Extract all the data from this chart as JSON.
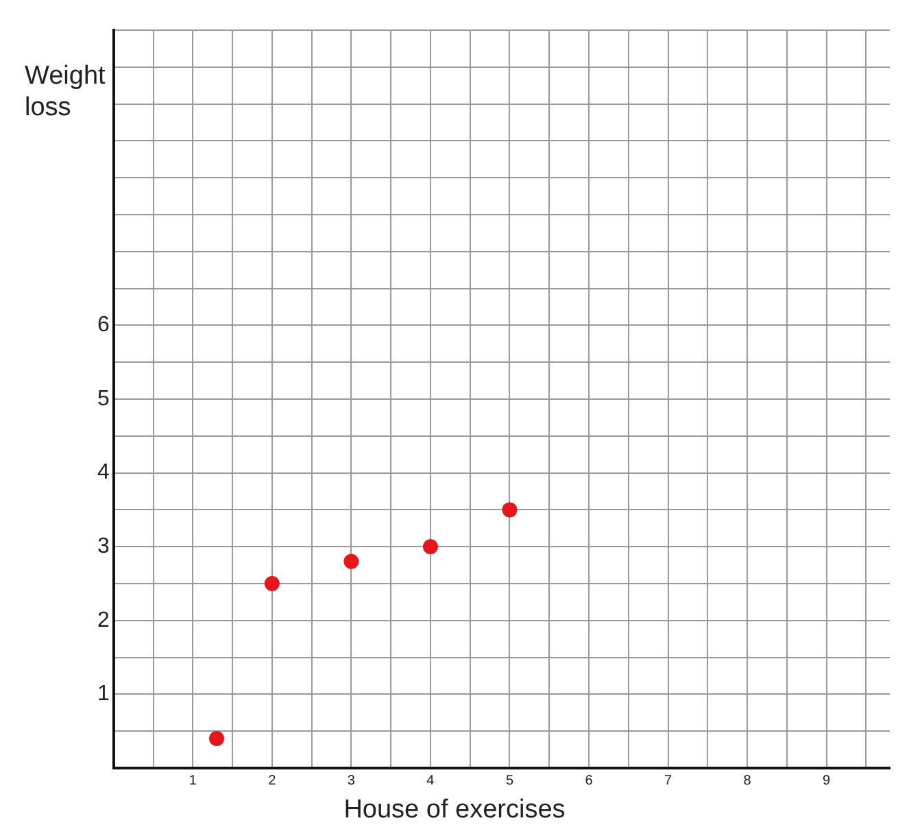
{
  "chart_data": {
    "type": "scatter",
    "xlabel": "House of exercises",
    "ylabel": "Weight loss",
    "x": [
      1.3,
      2,
      3,
      4,
      5
    ],
    "values": [
      0.4,
      2.5,
      2.8,
      3.0,
      3.5
    ],
    "color": "#e8151b",
    "marker": "circle",
    "grid": true,
    "legend": false,
    "xlim": [
      0,
      9.8
    ],
    "ylim": [
      0,
      10
    ],
    "xticks": [
      {
        "value": 0.5,
        "label": null
      },
      1,
      {
        "value": 1.5,
        "label": null
      },
      2,
      {
        "value": 2.5,
        "label": null
      },
      3,
      {
        "value": 3.5,
        "label": null
      },
      4,
      {
        "value": 4.5,
        "label": null
      },
      5,
      {
        "value": 5.5,
        "label": null
      },
      6,
      {
        "value": 6.5,
        "label": null
      },
      7,
      {
        "value": 7.5,
        "label": null
      },
      8,
      {
        "value": 8.5,
        "label": null
      },
      9,
      {
        "value": 9.5,
        "label": null
      }
    ],
    "yticks": [
      {
        "value": 0.5,
        "label": null
      },
      1,
      {
        "value": 1.5,
        "label": null
      },
      2,
      {
        "value": 2.5,
        "label": null
      },
      3,
      {
        "value": 3.5,
        "label": null
      },
      4,
      {
        "value": 4.5,
        "label": null
      },
      5,
      {
        "value": 5.5,
        "label": null
      },
      6,
      {
        "value": 6.5,
        "label": null
      },
      {
        "value": 7,
        "label": null
      },
      {
        "value": 7.5,
        "label": null
      },
      {
        "value": 8,
        "label": null
      },
      {
        "value": 8.5,
        "label": null
      },
      {
        "value": 9,
        "label": null
      },
      {
        "value": 9.5,
        "label": null
      },
      {
        "value": 10,
        "label": null
      }
    ]
  }
}
